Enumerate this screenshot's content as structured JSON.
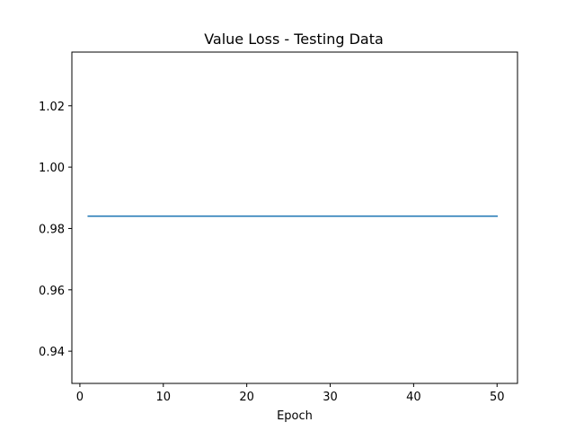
{
  "chart_data": {
    "type": "line",
    "title": "Value Loss - Testing Data",
    "xlabel": "Epoch",
    "ylabel": "",
    "xlim": [
      -0.96,
      52.45
    ],
    "ylim": [
      0.9295,
      1.0375
    ],
    "xticks": [
      0,
      10,
      20,
      30,
      40,
      50
    ],
    "xtick_labels": [
      "0",
      "10",
      "20",
      "30",
      "40",
      "50"
    ],
    "yticks": [
      0.94,
      0.96,
      0.98,
      1.0,
      1.02
    ],
    "ytick_labels": [
      "0.94",
      "0.96",
      "0.98",
      "1.00",
      "1.02"
    ],
    "grid": false,
    "legend": "none",
    "series": [
      {
        "color": "#1f77b4",
        "x": [
          1,
          2,
          3,
          4,
          5,
          6,
          7,
          8,
          9,
          10,
          11,
          12,
          13,
          14,
          15,
          16,
          17,
          18,
          19,
          20,
          21,
          22,
          23,
          24,
          25,
          26,
          27,
          28,
          29,
          30,
          31,
          32,
          33,
          34,
          35,
          36,
          37,
          38,
          39,
          40,
          41,
          42,
          43,
          44,
          45,
          46,
          47,
          48,
          49,
          50
        ],
        "y": [
          0.984,
          0.984,
          0.984,
          0.984,
          0.984,
          0.984,
          0.984,
          0.984,
          0.984,
          0.984,
          0.984,
          0.984,
          0.984,
          0.984,
          0.984,
          0.984,
          0.984,
          0.984,
          0.984,
          0.984,
          0.984,
          0.984,
          0.984,
          0.984,
          0.984,
          0.984,
          0.984,
          0.984,
          0.984,
          0.984,
          0.984,
          0.984,
          0.984,
          0.984,
          0.984,
          0.984,
          0.984,
          0.984,
          0.984,
          0.984,
          0.984,
          0.984,
          0.984,
          0.984,
          0.984,
          0.984,
          0.984,
          0.984,
          0.984,
          0.984
        ]
      }
    ]
  }
}
